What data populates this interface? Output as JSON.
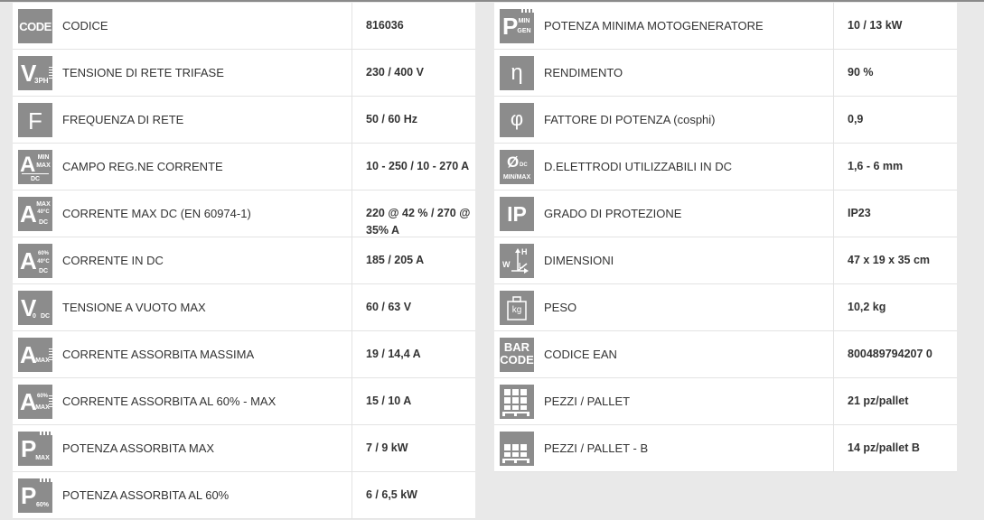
{
  "colors": {
    "icon_bg": "#8c8c8c",
    "row_bg": "#ffffff",
    "page_bg": "#e9e9e9",
    "text": "#333333"
  },
  "left_rows": [
    {
      "icon": "code-icon",
      "icon_text": "CODE",
      "label": "CODICE",
      "value": "816036"
    },
    {
      "icon": "voltage-3ph-icon",
      "icon_text": "V",
      "icon_sub": "3PH",
      "label": "TENSIONE DI RETE TRIFASE",
      "value": "230 / 400 V"
    },
    {
      "icon": "frequency-icon",
      "icon_text": "F",
      "label": "FREQUENZA DI RETE",
      "value": "50 / 60 Hz"
    },
    {
      "icon": "current-range-icon",
      "icon_text": "A",
      "icon_sub": "MIN",
      "icon_sub2": "MAX",
      "icon_sub3": "DC",
      "label": "CAMPO REG.NE CORRENTE",
      "value": "10 - 250 / 10 - 270 A"
    },
    {
      "icon": "current-max-dc-icon",
      "icon_text": "A",
      "icon_sub": "MAX",
      "icon_sub2": "40°C",
      "icon_sub3": "DC",
      "label": "CORRENTE MAX DC (EN 60974-1)",
      "value": "220 @ 42 % / 270 @ 35% A"
    },
    {
      "icon": "current-dc-icon",
      "icon_text": "A",
      "icon_sub": "60%",
      "icon_sub2": "40°C",
      "icon_sub3": "DC",
      "label": "CORRENTE IN DC",
      "value": "185 / 205 A"
    },
    {
      "icon": "open-circuit-voltage-icon",
      "icon_text": "V",
      "icon_sub": "0",
      "icon_sub2": "DC",
      "label": "TENSIONE A VUOTO MAX",
      "value": "60 / 63 V"
    },
    {
      "icon": "absorbed-current-max-icon",
      "icon_text": "A",
      "icon_sub": "MAX",
      "label": "CORRENTE ASSORBITA MASSIMA",
      "value": "19 / 14,4 A"
    },
    {
      "icon": "absorbed-current-60-icon",
      "icon_text": "A",
      "icon_sub": "60%",
      "icon_sub2": "MAX",
      "label": "CORRENTE ASSORBITA AL 60% - MAX",
      "value": "15 / 10 A"
    },
    {
      "icon": "absorbed-power-max-icon",
      "icon_text": "P",
      "icon_sub": "MAX",
      "label": "POTENZA ASSORBITA MAX",
      "value": "7 / 9 kW"
    },
    {
      "icon": "absorbed-power-60-icon",
      "icon_text": "P",
      "icon_sub": "60%",
      "label": "POTENZA ASSORBITA AL 60%",
      "value": "6 / 6,5 kW"
    }
  ],
  "right_rows": [
    {
      "icon": "generator-min-power-icon",
      "icon_text": "P",
      "icon_sub": "MIN",
      "icon_sub2": "GEN",
      "label": "POTENZA MINIMA MOTOGENERATORE",
      "value": "10 / 13 kW"
    },
    {
      "icon": "efficiency-icon",
      "icon_text": "η",
      "label": "RENDIMENTO",
      "value": "90 %"
    },
    {
      "icon": "power-factor-icon",
      "icon_text": "φ",
      "label": "FATTORE DI POTENZA (cosphi)",
      "value": "0,9"
    },
    {
      "icon": "electrode-diameter-icon",
      "icon_text": "Ø",
      "icon_sub": "DC",
      "icon_sub2": "MIN/MAX",
      "label": "D.ELETTRODI UTILIZZABILI IN DC",
      "value": "1,6 - 6 mm"
    },
    {
      "icon": "ip-rating-icon",
      "icon_text": "IP",
      "label": "GRADO DI PROTEZIONE",
      "value": "IP23"
    },
    {
      "icon": "dimensions-icon",
      "icon_text": "W",
      "icon_sub": "H",
      "icon_sub2": "L",
      "label": "DIMENSIONI",
      "value": "47 x 19 x 35 cm"
    },
    {
      "icon": "weight-icon",
      "icon_text": "kg",
      "label": "PESO",
      "value": "10,2 kg"
    },
    {
      "icon": "barcode-icon",
      "icon_text": "BAR",
      "icon_sub": "CODE",
      "label": "CODICE EAN",
      "value": "800489794207 0"
    },
    {
      "icon": "pallet-icon",
      "label": "PEZZI / PALLET",
      "value": "21 pz/pallet"
    },
    {
      "icon": "pallet-b-icon",
      "label": "PEZZI / PALLET - B",
      "value": "14 pz/pallet B"
    }
  ]
}
